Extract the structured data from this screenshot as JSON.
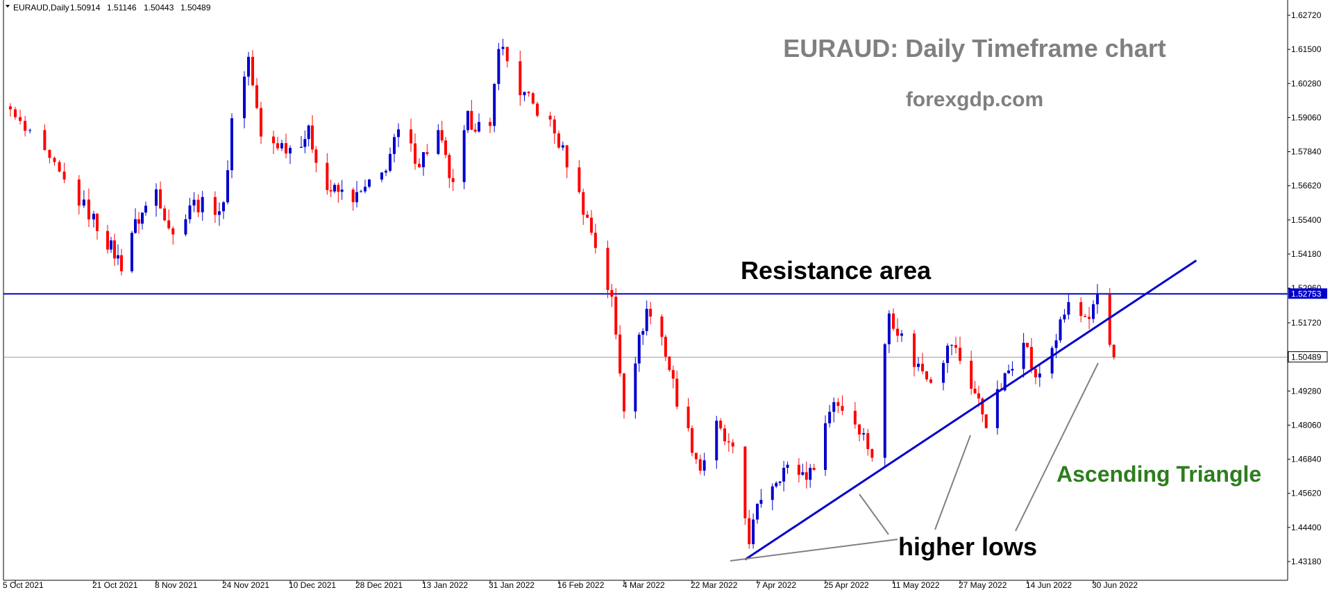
{
  "chart_data": {
    "type": "candlestick",
    "symbol_header": {
      "symbol": "EURAUD,Daily",
      "open": "1.50914",
      "high": "1.51146",
      "low": "1.50443",
      "close": "1.50489"
    },
    "title": "EURAUD: Daily Timeframe chart",
    "subtitle": "forexgdp.com",
    "y_axis": {
      "ticks": [
        "1.62720",
        "1.61500",
        "1.60280",
        "1.59060",
        "1.57840",
        "1.56620",
        "1.55400",
        "1.54180",
        "1.52960",
        "1.51720",
        "1.50500",
        "1.49280",
        "1.48060",
        "1.46840",
        "1.45620",
        "1.44400",
        "1.43180"
      ],
      "min": 1.4318,
      "max": 1.6272
    },
    "x_axis": {
      "ticks": [
        "5 Oct 2021",
        "21 Oct 2021",
        "8 Nov 2021",
        "24 Nov 2021",
        "10 Dec 2021",
        "28 Dec 2021",
        "13 Jan 2022",
        "31 Jan 2022",
        "16 Feb 2022",
        "4 Mar 2022",
        "22 Mar 2022",
        "7 Apr 2022",
        "25 Apr 2022",
        "11 May 2022",
        "27 May 2022",
        "14 Jun 2022",
        "30 Jun 2022"
      ]
    },
    "resistance": {
      "label": "1.52753",
      "value": 1.52753,
      "color": "#0000cc"
    },
    "current_price": {
      "label": "1.50489",
      "value": 1.50489
    },
    "trendline": {
      "start": {
        "date": "2022-04-04",
        "price": 1.4325
      },
      "end": {
        "date": "2022-07-05",
        "price": 1.5046
      },
      "extends_to": {
        "date": "2022-07-25",
        "price": 1.5395
      }
    },
    "bull_color": "#0000cc",
    "bear_color": "#ff0000",
    "annotations": {
      "resistance": "Resistance area",
      "higher_lows": "higher lows",
      "pattern": "Ascending Triangle"
    }
  }
}
